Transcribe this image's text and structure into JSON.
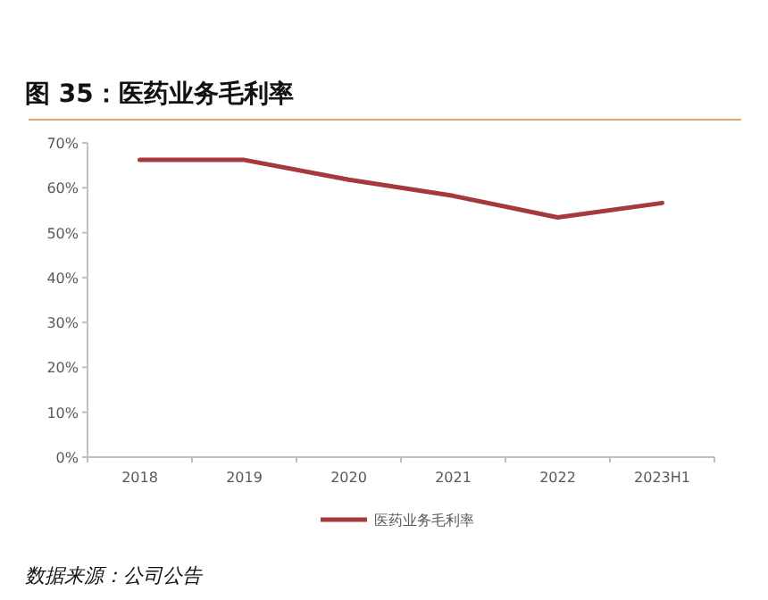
{
  "chart_data": {
    "type": "line",
    "title": "图 35：医药业务毛利率",
    "categories": [
      "2018",
      "2019",
      "2020",
      "2021",
      "2022",
      "2023H1"
    ],
    "series": [
      {
        "name": "医药业务毛利率",
        "color": "#a5393b",
        "values": [
          66.2,
          66.2,
          61.8,
          58.2,
          53.4,
          56.6
        ]
      }
    ],
    "ylim": [
      0,
      70
    ],
    "yticks": [
      {
        "value": 0,
        "label": "0%"
      },
      {
        "value": 10,
        "label": "10%"
      },
      {
        "value": 20,
        "label": "20%"
      },
      {
        "value": 30,
        "label": "30%"
      },
      {
        "value": 40,
        "label": "40%"
      },
      {
        "value": 50,
        "label": "50%"
      },
      {
        "value": 60,
        "label": "60%"
      },
      {
        "value": 70,
        "label": "70%"
      }
    ],
    "grid": false,
    "legend": "bottom",
    "marker": "none",
    "line_style": "solid",
    "annotations": [
      "数据来源：公司公告"
    ]
  }
}
